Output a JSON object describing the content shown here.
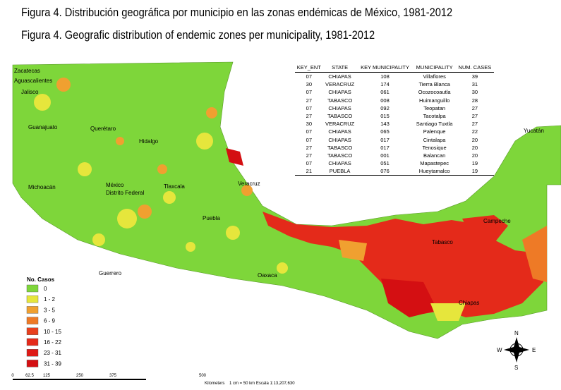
{
  "header": {
    "title_es": "Figura 4. Distribución geográfica por municipio en las zonas endémicas de México, 1981-2012",
    "title_en": "Figura 4. Geografic distribution of endemic zones per municipality, 1981-2012"
  },
  "table": {
    "columns": [
      "KEY_ENT",
      "STATE",
      "KEY MUNICIPALITY",
      "MUNICIPALITY",
      "NUM. CASES"
    ],
    "rows": [
      [
        "07",
        "CHIAPAS",
        "108",
        "Villaflores",
        "39"
      ],
      [
        "30",
        "VERACRUZ",
        "174",
        "Tierra Blanca",
        "31"
      ],
      [
        "07",
        "CHIAPAS",
        "061",
        "Ocozocoautla",
        "30"
      ],
      [
        "27",
        "TABASCO",
        "008",
        "Huimanguillo",
        "28"
      ],
      [
        "07",
        "CHIAPAS",
        "092",
        "Teopatan",
        "27"
      ],
      [
        "27",
        "TABASCO",
        "015",
        "Tacotalpa",
        "27"
      ],
      [
        "30",
        "VERACRUZ",
        "143",
        "Santiago Tuxtla",
        "27"
      ],
      [
        "07",
        "CHIAPAS",
        "065",
        "Palenque",
        "22"
      ],
      [
        "07",
        "CHIAPAS",
        "017",
        "Cintalapa",
        "20"
      ],
      [
        "27",
        "TABASCO",
        "017",
        "Tenosique",
        "20"
      ],
      [
        "27",
        "TABASCO",
        "001",
        "Balancan",
        "20"
      ],
      [
        "07",
        "CHIAPAS",
        "051",
        "Mapastepec",
        "19"
      ],
      [
        "21",
        "PUEBLA",
        "076",
        "Hueytamalco",
        "19"
      ]
    ]
  },
  "legend": {
    "title": "No. Casos",
    "items": [
      {
        "label": "0",
        "color": "#7ed63a"
      },
      {
        "label": "1 - 2",
        "color": "#e6e63c"
      },
      {
        "label": "3 - 5",
        "color": "#f0a030"
      },
      {
        "label": "6 - 9",
        "color": "#ee7a26"
      },
      {
        "label": "10 - 15",
        "color": "#e8401e"
      },
      {
        "label": "16 - 22",
        "color": "#e42a1a"
      },
      {
        "label": "23 - 31",
        "color": "#de1a16"
      },
      {
        "label": "31 - 39",
        "color": "#d40f12"
      }
    ]
  },
  "map_labels": [
    "Zacatecas",
    "Aguascalientes",
    "Jalisco",
    "Guanajuato",
    "Querétaro",
    "Hidalgo",
    "Michoacán",
    "México",
    "Distrito Federal",
    "Tlaxcala",
    "Veracruz",
    "Puebla",
    "Guerrero",
    "Oaxaca",
    "Tabasco",
    "Campeche",
    "Chiapas",
    "Yucatán"
  ],
  "scale": {
    "ticks": [
      "0",
      "62.5",
      "125",
      "250",
      "375",
      "500"
    ],
    "unit": "Kilometers",
    "note": "1 cm = 50 km Escala 1:13,207,630"
  },
  "compass": {
    "n": "N",
    "s": "S",
    "e": "E",
    "w": "W"
  }
}
